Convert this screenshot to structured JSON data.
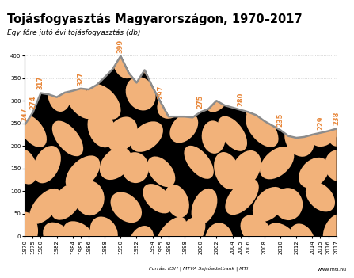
{
  "chart_data": {
    "type": "area",
    "title": "Tojásfogyasztás Magyarországon, 1970–2017",
    "subtitle": "Egy főre jutó évi tojásfogyasztás (db)",
    "source": "Forrás: KSH | MTVA Sajtóadatbank | MTI",
    "footer": "www.mti.hu",
    "categories": [
      "1970",
      "1975",
      "1980",
      null,
      "1982",
      null,
      "1984",
      "1985",
      "1986",
      null,
      "1988",
      null,
      "1990",
      null,
      "1992",
      null,
      "1994",
      "1995",
      "1996",
      null,
      "1998",
      null,
      "2000",
      null,
      "2002",
      null,
      "2004",
      "2005",
      "2006",
      null,
      "2008",
      null,
      "2010",
      null,
      "2012",
      null,
      "2014",
      "2015",
      "2016",
      "2017"
    ],
    "values": [
      247,
      274,
      317,
      314,
      308,
      318,
      322,
      327,
      325,
      335,
      352,
      370,
      399,
      362,
      340,
      368,
      330,
      297,
      265,
      265,
      265,
      263,
      275,
      282,
      300,
      290,
      285,
      280,
      275,
      268,
      255,
      245,
      235,
      222,
      218,
      220,
      225,
      229,
      233,
      238
    ],
    "value_labels": [
      "247",
      "274",
      "317",
      null,
      null,
      null,
      null,
      "327",
      null,
      null,
      null,
      null,
      "399",
      null,
      null,
      null,
      null,
      "297",
      null,
      null,
      null,
      null,
      "275",
      null,
      null,
      null,
      null,
      "280",
      null,
      null,
      null,
      null,
      "235",
      null,
      null,
      null,
      null,
      "229",
      null,
      "238"
    ],
    "data_labels": true,
    "color": "#f2b27a",
    "ylim": [
      0,
      400
    ],
    "yticks": [
      0,
      50,
      100,
      150,
      200,
      250,
      300,
      350,
      400
    ],
    "grid": true
  }
}
